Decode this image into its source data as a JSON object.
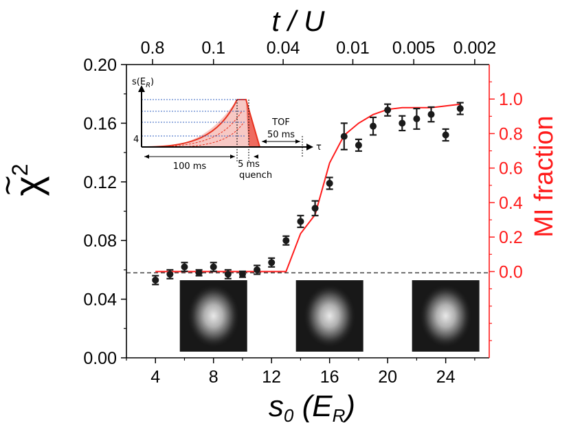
{
  "chart_data": {
    "type": "scatter",
    "xlabel_main": "s",
    "xlabel_sub": "0",
    "xlabel_unit_pre": " (E",
    "xlabel_unit_sub": "R",
    "xlabel_unit_post": ")",
    "ylabel_left": "χ",
    "ylabel_left_sup": "2",
    "ylabel_right": "MI fraction",
    "top_axis_label": "t / U",
    "xlim": [
      2,
      27
    ],
    "ylim_left": [
      0.0,
      0.2
    ],
    "ylim_right": [
      -0.5,
      1.2
    ],
    "x_ticks": [
      4,
      8,
      12,
      16,
      20,
      24
    ],
    "x_tick_labels": [
      "4",
      "8",
      "12",
      "16",
      "20",
      "24"
    ],
    "y_left_ticks": [
      0.0,
      0.04,
      0.08,
      0.12,
      0.16,
      0.2
    ],
    "y_left_tick_labels": [
      "0.00",
      "0.04",
      "0.08",
      "0.12",
      "0.16",
      "0.20"
    ],
    "y_right_ticks": [
      0.0,
      0.2,
      0.4,
      0.6,
      0.8,
      1.0
    ],
    "y_right_tick_labels": [
      "0.0",
      "0.2",
      "0.4",
      "0.6",
      "0.8",
      "1.0"
    ],
    "top_ticks_x": [
      3.8,
      8.0,
      12.8,
      17.6,
      21.8,
      26.0
    ],
    "top_tick_labels": [
      "0.8",
      "0.1",
      "0.04",
      "0.01",
      "0.005",
      "0.002"
    ],
    "reference_line_y": 0.058,
    "series": [
      {
        "x": [
          4,
          5,
          6,
          7,
          8,
          9,
          10,
          11,
          12,
          13,
          14,
          15,
          16,
          17,
          18,
          19,
          20,
          21,
          22,
          23,
          24,
          25
        ],
        "y": [
          0.053,
          0.057,
          0.062,
          0.058,
          0.062,
          0.057,
          0.057,
          0.06,
          0.065,
          0.08,
          0.093,
          0.102,
          0.119,
          0.151,
          0.145,
          0.158,
          0.169,
          0.16,
          0.163,
          0.166,
          0.152,
          0.17
        ],
        "err": [
          0.003,
          0.003,
          0.003,
          0.002,
          0.003,
          0.003,
          0.002,
          0.003,
          0.003,
          0.003,
          0.004,
          0.005,
          0.004,
          0.009,
          0.004,
          0.006,
          0.004,
          0.005,
          0.007,
          0.005,
          0.004,
          0.004
        ]
      },
      {
        "x": [
          4,
          5,
          6,
          7,
          8,
          9,
          10,
          11,
          12,
          13,
          14,
          15,
          16,
          17,
          18,
          19,
          20,
          21,
          22,
          23,
          24,
          25
        ],
        "y": [
          0.0,
          0.0,
          0.0,
          0.0,
          0.0,
          0.0,
          0.0,
          0.0,
          0.0,
          0.0,
          0.22,
          0.33,
          0.63,
          0.79,
          0.86,
          0.91,
          0.94,
          0.95,
          0.95,
          0.95,
          0.96,
          0.97
        ]
      }
    ],
    "colors": {
      "points": "#1a1a1a",
      "mi_curve": "#ff1a1a",
      "right_axis": "#ff1a1a",
      "inset_fill": "#f7c8c4"
    },
    "inset": {
      "y_axis_label_pre": "s(E",
      "y_axis_label_sub": "R",
      "y_axis_label_post": ")",
      "y_tick_label": "4",
      "x_axis_label": "τ",
      "ramp_label": "100 ms",
      "quench_time_label": "5 ms",
      "quench_label": "quench",
      "tof_label": "TOF",
      "tof_time_label": "50 ms"
    },
    "thumbnails": [
      {
        "x": 8
      },
      {
        "x": 16
      },
      {
        "x": 24
      }
    ]
  }
}
